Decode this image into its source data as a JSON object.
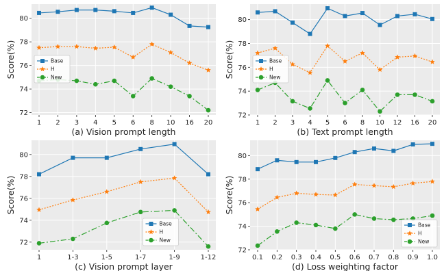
{
  "chart_data": [
    {
      "type": "line",
      "caption": "(a) Vision prompt length",
      "ylabel": "Score(%)",
      "categories": [
        "1",
        "2",
        "3",
        "4",
        "5",
        "6",
        "8",
        "10",
        "16",
        "20"
      ],
      "ylim": [
        71.8,
        81.2
      ],
      "yticks": [
        72,
        74,
        76,
        78,
        80
      ],
      "grid": true,
      "legend_loc": "center-left",
      "series": [
        {
          "name": "Base",
          "color": "#1f77b4",
          "marker": "square",
          "dash": "",
          "values": [
            80.45,
            80.55,
            80.7,
            80.7,
            80.6,
            80.45,
            80.9,
            80.3,
            79.35,
            79.25
          ]
        },
        {
          "name": "H",
          "color": "#ff7f0e",
          "marker": "star",
          "dash": "2,2",
          "values": [
            77.5,
            77.6,
            77.6,
            77.45,
            77.55,
            76.7,
            77.8,
            77.1,
            76.2,
            75.6
          ]
        },
        {
          "name": "New",
          "color": "#2ca02c",
          "marker": "circle",
          "dash": "8,3,2,3",
          "values": [
            74.7,
            74.8,
            74.7,
            74.4,
            74.7,
            73.4,
            74.9,
            74.2,
            73.4,
            72.2
          ]
        }
      ]
    },
    {
      "type": "line",
      "caption": "(b) Text prompt length",
      "ylabel": "Score(%)",
      "categories": [
        "1",
        "2",
        "3",
        "4",
        "5",
        "6",
        "8",
        "10",
        "12",
        "16",
        "20"
      ],
      "ylim": [
        72.0,
        81.3
      ],
      "yticks": [
        72,
        74,
        76,
        78,
        80
      ],
      "grid": true,
      "legend_loc": "center-left",
      "series": [
        {
          "name": "Base",
          "color": "#1f77b4",
          "marker": "square",
          "dash": "",
          "values": [
            80.6,
            80.7,
            79.75,
            78.8,
            80.95,
            80.3,
            80.55,
            79.55,
            80.3,
            80.45,
            80.05
          ]
        },
        {
          "name": "H",
          "color": "#ff7f0e",
          "marker": "star",
          "dash": "2,2",
          "values": [
            77.2,
            77.6,
            76.25,
            75.55,
            77.8,
            76.5,
            77.2,
            75.8,
            76.85,
            76.95,
            76.45
          ]
        },
        {
          "name": "New",
          "color": "#2ca02c",
          "marker": "circle",
          "dash": "8,3,2,3",
          "values": [
            74.1,
            74.7,
            73.15,
            72.55,
            74.9,
            73.0,
            74.1,
            72.3,
            73.7,
            73.7,
            73.15
          ]
        }
      ]
    },
    {
      "type": "line",
      "caption": "(c) Vision prompt layer",
      "ylabel": "Score(%)",
      "categories": [
        "1",
        "1-3",
        "1-5",
        "1-7",
        "1-9",
        "1-12"
      ],
      "ylim": [
        71.3,
        81.3
      ],
      "yticks": [
        72,
        74,
        76,
        78,
        80
      ],
      "grid": true,
      "legend_loc": "lower-center",
      "series": [
        {
          "name": "Base",
          "color": "#1f77b4",
          "marker": "square",
          "dash": "",
          "values": [
            78.2,
            79.7,
            79.7,
            80.5,
            80.95,
            78.2
          ]
        },
        {
          "name": "H",
          "color": "#ff7f0e",
          "marker": "star",
          "dash": "2,2",
          "values": [
            74.95,
            75.85,
            76.6,
            77.5,
            77.85,
            74.75
          ]
        },
        {
          "name": "New",
          "color": "#2ca02c",
          "marker": "circle",
          "dash": "8,3,2,3",
          "values": [
            71.9,
            72.3,
            73.75,
            74.75,
            74.9,
            71.6
          ]
        }
      ]
    },
    {
      "type": "line",
      "caption": "(d) Loss weighting factor",
      "ylabel": "Score(%)",
      "categories": [
        "0.1",
        "0.2",
        "0.3",
        "0.4",
        "0.5",
        "0.6",
        "0.7",
        "0.8",
        "0.9",
        "1.0"
      ],
      "ylim": [
        72.0,
        81.3
      ],
      "yticks": [
        72,
        74,
        76,
        78,
        80
      ],
      "grid": true,
      "legend_loc": "lower-right",
      "series": [
        {
          "name": "Base",
          "color": "#1f77b4",
          "marker": "square",
          "dash": "",
          "values": [
            78.85,
            79.6,
            79.45,
            79.45,
            79.8,
            80.3,
            80.6,
            80.4,
            80.95,
            81.0
          ]
        },
        {
          "name": "H",
          "color": "#ff7f0e",
          "marker": "star",
          "dash": "2,2",
          "values": [
            75.45,
            76.45,
            76.8,
            76.7,
            76.65,
            77.55,
            77.45,
            77.35,
            77.65,
            77.8
          ]
        },
        {
          "name": "New",
          "color": "#2ca02c",
          "marker": "circle",
          "dash": "8,3,2,3",
          "values": [
            72.35,
            73.55,
            74.3,
            74.1,
            73.8,
            75.0,
            74.65,
            74.55,
            74.65,
            74.9
          ]
        }
      ]
    }
  ]
}
